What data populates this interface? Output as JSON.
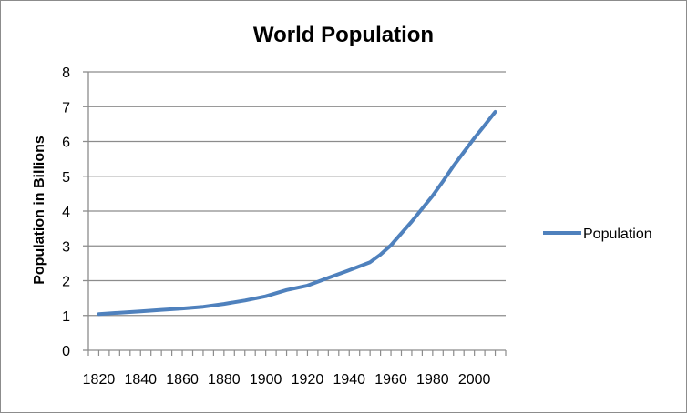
{
  "chart_data": {
    "type": "line",
    "title": "World Population",
    "xlabel": "",
    "ylabel": "Population in Billions",
    "xlim": [
      1815,
      2015
    ],
    "ylim": [
      0,
      8
    ],
    "x_ticks": [
      1820,
      1840,
      1860,
      1880,
      1900,
      1920,
      1940,
      1960,
      1980,
      2000
    ],
    "y_ticks": [
      0,
      1,
      2,
      3,
      4,
      5,
      6,
      7,
      8
    ],
    "grid": true,
    "legend_position": "right",
    "series": [
      {
        "name": "Population",
        "color": "#4f81bd",
        "x": [
          1820,
          1830,
          1840,
          1850,
          1860,
          1870,
          1880,
          1890,
          1900,
          1910,
          1920,
          1930,
          1940,
          1950,
          1955,
          1960,
          1965,
          1970,
          1975,
          1980,
          1985,
          1990,
          1995,
          2000,
          2005,
          2010
        ],
        "y": [
          1.04,
          1.08,
          1.12,
          1.16,
          1.2,
          1.25,
          1.33,
          1.43,
          1.55,
          1.73,
          1.86,
          2.08,
          2.3,
          2.53,
          2.75,
          3.02,
          3.36,
          3.7,
          4.07,
          4.44,
          4.86,
          5.3,
          5.7,
          6.1,
          6.47,
          6.85
        ]
      }
    ]
  }
}
